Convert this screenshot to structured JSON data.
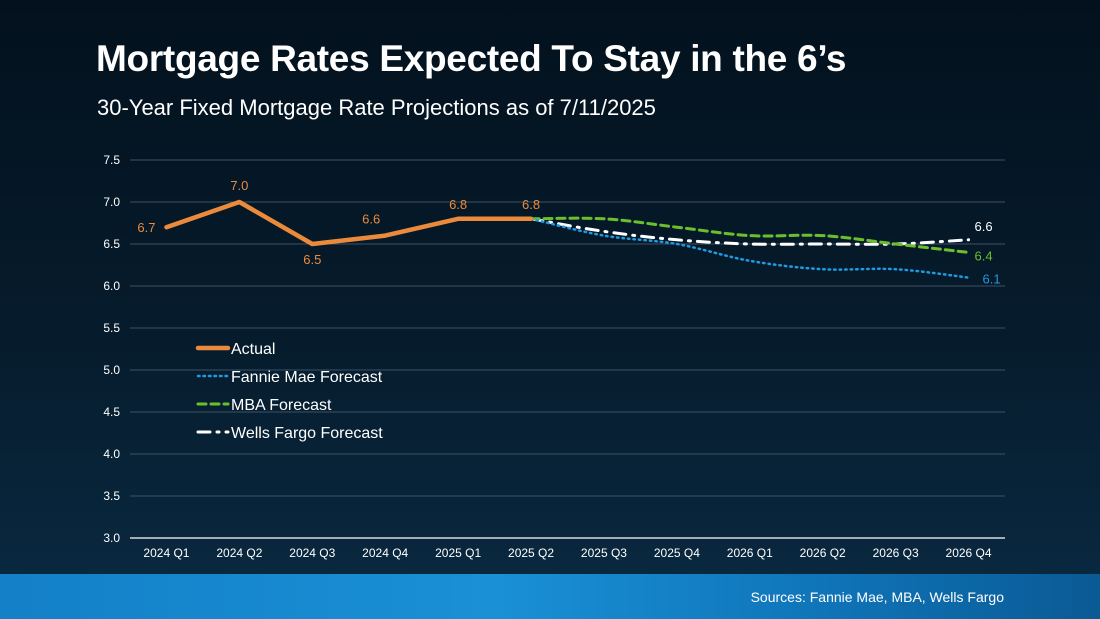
{
  "chart_data": {
    "type": "line",
    "title": "Mortgage Rates Expected To Stay in the 6’s",
    "subtitle": "30-Year Fixed Mortgage Rate Projections as of 7/11/2025",
    "categories": [
      "2024 Q1",
      "2024 Q2",
      "2024 Q3",
      "2024 Q4",
      "2025 Q1",
      "2025 Q2",
      "2025 Q3",
      "2025 Q4",
      "2026 Q1",
      "2026 Q2",
      "2026 Q3",
      "2026 Q4"
    ],
    "ylim": [
      3.0,
      7.5
    ],
    "yticks": [
      "3.0",
      "3.5",
      "4.0",
      "4.5",
      "5.0",
      "5.5",
      "6.0",
      "6.5",
      "7.0",
      "7.5"
    ],
    "grid": true,
    "legend_position": "left-middle",
    "series": [
      {
        "name": "Actual",
        "color": "#ec8a3c",
        "style": "solid",
        "values": [
          6.7,
          7.0,
          6.5,
          6.6,
          6.8,
          6.8,
          null,
          null,
          null,
          null,
          null,
          null
        ],
        "labels": [
          "6.7",
          "7.0",
          "6.5",
          "6.6",
          "6.8",
          "6.8",
          null,
          null,
          null,
          null,
          null,
          null
        ]
      },
      {
        "name": "Fannie Mae Forecast",
        "color": "#1e9be0",
        "style": "dotted",
        "values": [
          null,
          null,
          null,
          null,
          null,
          6.8,
          6.6,
          6.5,
          6.3,
          6.2,
          6.2,
          6.1
        ],
        "labels": [
          null,
          null,
          null,
          null,
          null,
          null,
          null,
          null,
          null,
          null,
          null,
          "6.1"
        ]
      },
      {
        "name": "MBA Forecast",
        "color": "#6bbf2c",
        "style": "dashed",
        "values": [
          null,
          null,
          null,
          null,
          null,
          6.8,
          6.8,
          6.7,
          6.6,
          6.6,
          6.5,
          6.4
        ],
        "labels": [
          null,
          null,
          null,
          null,
          null,
          null,
          null,
          null,
          null,
          null,
          null,
          "6.4"
        ]
      },
      {
        "name": "Wells Fargo Forecast",
        "color": "#ffffff",
        "style": "dashdot",
        "values": [
          null,
          null,
          null,
          null,
          null,
          6.8,
          6.65,
          6.55,
          6.5,
          6.5,
          6.5,
          6.55
        ],
        "labels": [
          null,
          null,
          null,
          null,
          null,
          null,
          null,
          null,
          null,
          null,
          null,
          "6.6"
        ]
      }
    ]
  },
  "footer": {
    "sources": "Sources: Fannie Mae, MBA, Wells Fargo"
  }
}
